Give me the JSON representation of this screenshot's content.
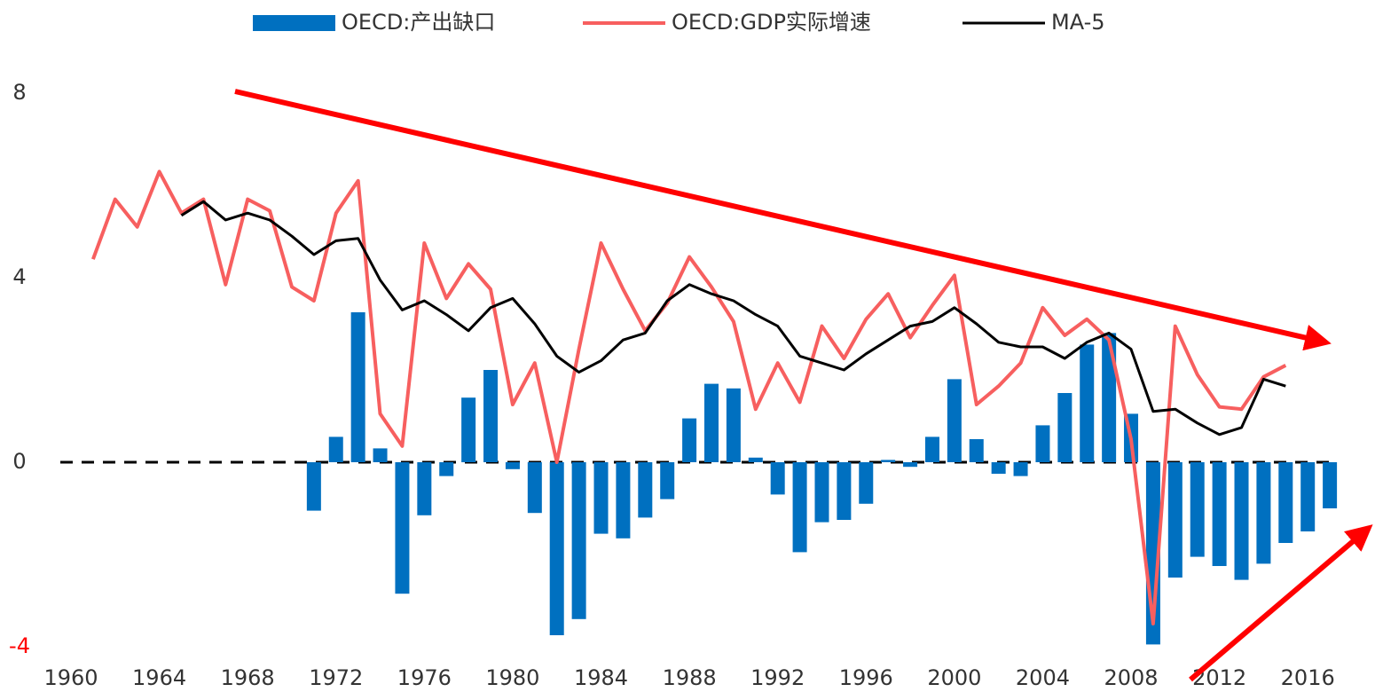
{
  "chart_data": {
    "type": "combo",
    "x": [
      1961,
      1962,
      1963,
      1964,
      1965,
      1966,
      1967,
      1968,
      1969,
      1970,
      1971,
      1972,
      1973,
      1974,
      1975,
      1976,
      1977,
      1978,
      1979,
      1980,
      1981,
      1982,
      1983,
      1984,
      1985,
      1986,
      1987,
      1988,
      1989,
      1990,
      1991,
      1992,
      1993,
      1994,
      1995,
      1996,
      1997,
      1998,
      1999,
      2000,
      2001,
      2002,
      2003,
      2004,
      2005,
      2006,
      2007,
      2008,
      2009,
      2010,
      2011,
      2012,
      2013,
      2014,
      2015,
      2016,
      2017
    ],
    "xlim": [
      1959,
      2018
    ],
    "xticks": [
      1960,
      1964,
      1968,
      1972,
      1976,
      1980,
      1984,
      1988,
      1992,
      1996,
      2000,
      2004,
      2008,
      2012,
      2016
    ],
    "ylim": [
      -4,
      8
    ],
    "yticks": [
      -4,
      0,
      4,
      8
    ],
    "series": [
      {
        "name": "OECD:产出缺口",
        "type": "bar",
        "color": "#0070c0",
        "values": [
          null,
          null,
          null,
          null,
          null,
          null,
          null,
          null,
          null,
          null,
          -1.05,
          0.55,
          3.25,
          0.3,
          -2.85,
          -1.15,
          -0.3,
          1.4,
          2.0,
          -0.15,
          -1.1,
          -3.75,
          -3.4,
          -1.55,
          -1.65,
          -1.2,
          -0.8,
          0.95,
          1.7,
          1.6,
          0.1,
          -0.7,
          -1.95,
          -1.3,
          -1.25,
          -0.9,
          0.05,
          -0.1,
          0.55,
          1.8,
          0.5,
          -0.25,
          -0.3,
          0.8,
          1.5,
          2.55,
          2.8,
          1.05,
          -3.95,
          -2.5,
          -2.05,
          -2.25,
          -2.55,
          -2.2,
          -1.75,
          -1.5,
          -1.0
        ]
      },
      {
        "name": "OECD:GDP实际增速",
        "type": "line",
        "color": "#f75f5f",
        "values": [
          4.4,
          5.7,
          5.1,
          6.3,
          5.4,
          5.7,
          3.85,
          5.7,
          5.45,
          3.8,
          3.5,
          5.4,
          6.1,
          1.05,
          0.35,
          4.75,
          3.55,
          4.3,
          3.75,
          1.25,
          2.15,
          0.0,
          2.45,
          4.75,
          3.75,
          2.85,
          3.45,
          4.45,
          3.8,
          3.05,
          1.15,
          2.15,
          1.3,
          2.95,
          2.25,
          3.1,
          3.65,
          2.7,
          3.4,
          4.05,
          1.25,
          1.65,
          2.15,
          3.35,
          2.75,
          3.1,
          2.65,
          0.5,
          -3.5,
          2.95,
          1.9,
          1.2,
          1.15,
          1.85,
          2.1,
          null,
          null
        ]
      },
      {
        "name": "MA-5",
        "type": "line",
        "color": "#000000",
        "values": [
          null,
          null,
          null,
          null,
          5.35,
          5.65,
          5.25,
          5.4,
          5.25,
          4.9,
          4.5,
          4.8,
          4.85,
          3.95,
          3.3,
          3.5,
          3.2,
          2.85,
          3.35,
          3.55,
          3.0,
          2.3,
          1.95,
          2.2,
          2.65,
          2.8,
          3.5,
          3.85,
          3.65,
          3.5,
          3.2,
          2.95,
          2.3,
          2.15,
          2.0,
          2.35,
          2.65,
          2.95,
          3.05,
          3.35,
          3.0,
          2.6,
          2.5,
          2.5,
          2.25,
          2.6,
          2.8,
          2.45,
          1.1,
          1.15,
          0.85,
          0.6,
          0.75,
          1.8,
          1.65,
          null,
          null
        ]
      }
    ]
  }
}
